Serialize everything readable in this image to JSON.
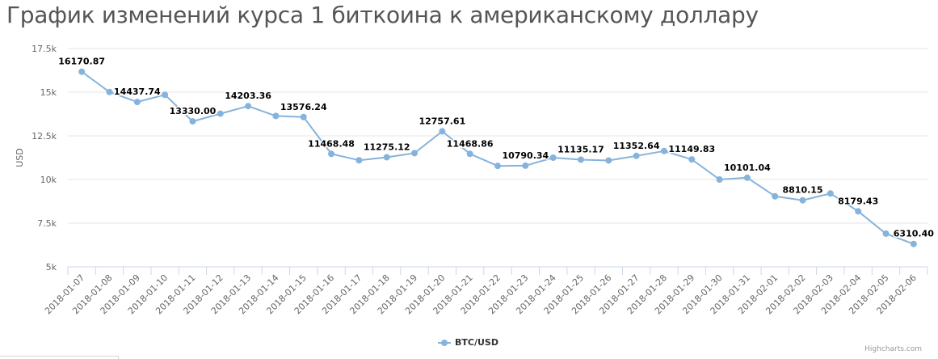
{
  "page": {
    "title": "График изменений курса 1 биткоина к американскому доллару",
    "credit": "Highcharts.com"
  },
  "chart_data": {
    "type": "line",
    "title": "",
    "xlabel": "",
    "ylabel": "USD",
    "ylim": [
      5000,
      17500
    ],
    "yticks": [
      5000,
      7500,
      10000,
      12500,
      15000,
      17500
    ],
    "ytick_labels": [
      "5k",
      "7.5k",
      "10k",
      "12.5k",
      "15k",
      "17.5k"
    ],
    "grid": true,
    "legend_position": "bottom-center",
    "series_color": "#86b3dc",
    "categories": [
      "2018-01-07",
      "2018-01-08",
      "2018-01-09",
      "2018-01-10",
      "2018-01-11",
      "2018-01-12",
      "2018-01-13",
      "2018-01-14",
      "2018-01-15",
      "2018-01-16",
      "2018-01-17",
      "2018-01-18",
      "2018-01-19",
      "2018-01-20",
      "2018-01-21",
      "2018-01-22",
      "2018-01-23",
      "2018-01-24",
      "2018-01-25",
      "2018-01-26",
      "2018-01-27",
      "2018-01-28",
      "2018-01-29",
      "2018-01-30",
      "2018-01-31",
      "2018-02-01",
      "2018-02-02",
      "2018-02-03",
      "2018-02-04",
      "2018-02-05",
      "2018-02-06"
    ],
    "series": [
      {
        "name": "BTC/USD",
        "values": [
          16170.87,
          15010,
          14437.74,
          14850,
          13330.0,
          13770,
          14203.36,
          13640,
          13576.24,
          11468.48,
          11100,
          11275.12,
          11510,
          12757.61,
          11468.86,
          10780,
          10790.34,
          11250,
          11135.17,
          11090,
          11352.64,
          11630,
          11149.83,
          10000,
          10101.04,
          9040,
          8810.15,
          9200,
          8179.43,
          6900,
          6310.4
        ],
        "labels": [
          "16170.87",
          "",
          "14437.74",
          "",
          "13330.00",
          "",
          "14203.36",
          "",
          "13576.24",
          "11468.48",
          "",
          "11275.12",
          "",
          "12757.61",
          "11468.86",
          "",
          "10790.34",
          "",
          "11135.17",
          "",
          "11352.64",
          "",
          "11149.83",
          "",
          "10101.04",
          "",
          "8810.15",
          "",
          "8179.43",
          "",
          "6310.40"
        ]
      }
    ]
  }
}
